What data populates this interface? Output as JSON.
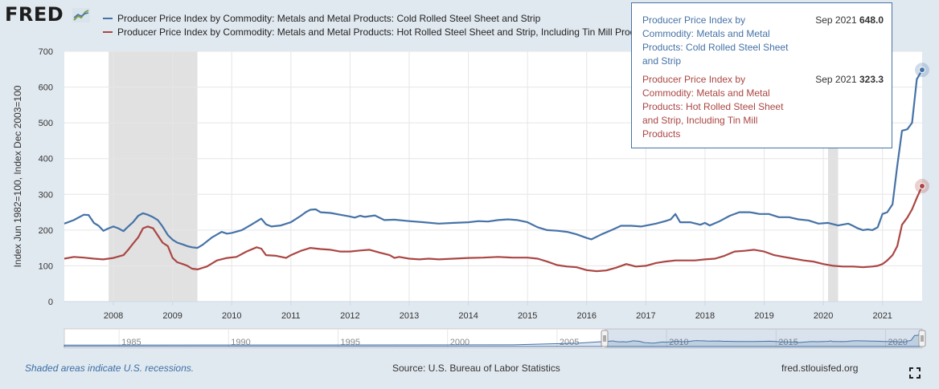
{
  "header": {
    "logo": "FRED"
  },
  "tooltip": [
    {
      "name": "Producer Price Index by Commodity: Metals and Metal Products: Cold Rolled Steel Sheet and Strip",
      "date": "Sep 2021",
      "value": "648.0",
      "color": "#4572a7"
    },
    {
      "name": "Producer Price Index by Commodity: Metals and Metal Products: Hot Rolled Steel Sheet and Strip, Including Tin Mill Products",
      "date": "Sep 2021",
      "value": "323.3",
      "color": "#aa4643"
    }
  ],
  "footer": {
    "note": "Shaded areas indicate U.S. recessions.",
    "source": "Source: U.S. Bureau of Labor Statistics",
    "site": "fred.stlouisfed.org"
  },
  "chart_data": {
    "type": "line",
    "title": "",
    "xlabel": "",
    "ylabel": "Index Jun 1982=100, Index Dec 2003=100",
    "ylim": [
      0,
      700
    ],
    "yticks": [
      0,
      100,
      200,
      300,
      400,
      500,
      600,
      700
    ],
    "xlim": [
      2007.17,
      2021.67
    ],
    "xticks": [
      "2008",
      "2009",
      "2010",
      "2011",
      "2012",
      "2013",
      "2014",
      "2015",
      "2016",
      "2017",
      "2018",
      "2019",
      "2020",
      "2021"
    ],
    "grid": true,
    "recessions": [
      [
        2007.92,
        2009.42
      ],
      [
        2020.08,
        2020.25
      ]
    ],
    "navigator": {
      "ticks": [
        "1985",
        "1990",
        "1995",
        "2000",
        "2005",
        "2010",
        "2015",
        "2020"
      ],
      "xlim": [
        1982.5,
        2021.67
      ],
      "selection": [
        2007.17,
        2021.67
      ]
    },
    "series": [
      {
        "name": "Producer Price Index by Commodity: Metals and Metal Products: Cold Rolled Steel Sheet and Strip",
        "color": "#4572a7",
        "x": [
          2007.17,
          2007.33,
          2007.5,
          2007.58,
          2007.67,
          2007.75,
          2007.83,
          2007.92,
          2008.0,
          2008.08,
          2008.17,
          2008.25,
          2008.33,
          2008.42,
          2008.5,
          2008.58,
          2008.67,
          2008.75,
          2008.83,
          2008.92,
          2009.0,
          2009.08,
          2009.17,
          2009.25,
          2009.33,
          2009.42,
          2009.5,
          2009.67,
          2009.83,
          2009.92,
          2010.0,
          2010.17,
          2010.33,
          2010.5,
          2010.58,
          2010.67,
          2010.83,
          2011.0,
          2011.17,
          2011.25,
          2011.33,
          2011.42,
          2011.5,
          2011.67,
          2011.83,
          2012.0,
          2012.08,
          2012.17,
          2012.25,
          2012.42,
          2012.58,
          2012.75,
          2013.0,
          2013.25,
          2013.5,
          2013.75,
          2014.0,
          2014.17,
          2014.33,
          2014.5,
          2014.67,
          2014.83,
          2015.0,
          2015.17,
          2015.33,
          2015.5,
          2015.67,
          2015.83,
          2016.0,
          2016.08,
          2016.25,
          2016.42,
          2016.58,
          2016.75,
          2016.92,
          2017.17,
          2017.33,
          2017.42,
          2017.5,
          2017.58,
          2017.75,
          2017.92,
          2018.0,
          2018.08,
          2018.25,
          2018.42,
          2018.58,
          2018.75,
          2018.83,
          2018.92,
          2019.08,
          2019.25,
          2019.42,
          2019.58,
          2019.75,
          2019.92,
          2020.08,
          2020.25,
          2020.42,
          2020.5,
          2020.58,
          2020.67,
          2020.75,
          2020.83,
          2020.92,
          2021.0,
          2021.08,
          2021.17,
          2021.25,
          2021.33,
          2021.42,
          2021.5,
          2021.58,
          2021.67
        ],
        "values": [
          218,
          228,
          243,
          242,
          220,
          212,
          198,
          205,
          210,
          205,
          197,
          210,
          222,
          240,
          247,
          243,
          236,
          228,
          210,
          186,
          173,
          165,
          160,
          155,
          152,
          150,
          158,
          180,
          195,
          190,
          192,
          200,
          215,
          232,
          216,
          210,
          213,
          222,
          240,
          250,
          257,
          258,
          250,
          248,
          243,
          238,
          235,
          240,
          237,
          241,
          228,
          229,
          225,
          222,
          218,
          220,
          222,
          225,
          224,
          228,
          230,
          228,
          222,
          208,
          200,
          198,
          195,
          188,
          178,
          174,
          188,
          200,
          212,
          212,
          210,
          218,
          225,
          230,
          245,
          222,
          222,
          215,
          220,
          213,
          225,
          240,
          250,
          250,
          248,
          245,
          245,
          236,
          236,
          230,
          227,
          218,
          220,
          213,
          218,
          212,
          205,
          200,
          202,
          200,
          208,
          245,
          250,
          272,
          380,
          478,
          482,
          500,
          622,
          648
        ]
      },
      {
        "name": "Producer Price Index by Commodity: Metals and Metal Products: Hot Rolled Steel Sheet and Strip, Including Tin Mill Products",
        "color": "#aa4643",
        "x": [
          2007.17,
          2007.33,
          2007.5,
          2007.67,
          2007.83,
          2008.0,
          2008.17,
          2008.25,
          2008.33,
          2008.42,
          2008.5,
          2008.58,
          2008.67,
          2008.75,
          2008.83,
          2008.92,
          2009.0,
          2009.08,
          2009.17,
          2009.25,
          2009.33,
          2009.42,
          2009.58,
          2009.75,
          2009.92,
          2010.08,
          2010.25,
          2010.42,
          2010.5,
          2010.58,
          2010.75,
          2010.92,
          2011.0,
          2011.17,
          2011.33,
          2011.5,
          2011.67,
          2011.83,
          2012.0,
          2012.17,
          2012.33,
          2012.5,
          2012.67,
          2012.75,
          2012.83,
          2013.0,
          2013.17,
          2013.33,
          2013.5,
          2013.75,
          2014.0,
          2014.25,
          2014.5,
          2014.75,
          2015.0,
          2015.17,
          2015.33,
          2015.5,
          2015.67,
          2015.83,
          2016.0,
          2016.17,
          2016.33,
          2016.5,
          2016.67,
          2016.83,
          2017.0,
          2017.17,
          2017.33,
          2017.5,
          2017.67,
          2017.83,
          2018.0,
          2018.17,
          2018.33,
          2018.5,
          2018.67,
          2018.83,
          2019.0,
          2019.17,
          2019.33,
          2019.5,
          2019.67,
          2019.83,
          2020.0,
          2020.17,
          2020.33,
          2020.5,
          2020.67,
          2020.83,
          2020.92,
          2021.0,
          2021.08,
          2021.17,
          2021.25,
          2021.33,
          2021.42,
          2021.5,
          2021.58,
          2021.67
        ],
        "values": [
          120,
          125,
          123,
          120,
          118,
          122,
          130,
          145,
          162,
          180,
          205,
          210,
          205,
          185,
          165,
          155,
          122,
          110,
          105,
          100,
          92,
          90,
          98,
          115,
          122,
          125,
          140,
          152,
          148,
          130,
          128,
          122,
          130,
          142,
          150,
          147,
          145,
          140,
          140,
          143,
          145,
          137,
          130,
          122,
          125,
          120,
          118,
          120,
          118,
          120,
          122,
          123,
          125,
          123,
          123,
          120,
          112,
          102,
          98,
          96,
          88,
          85,
          87,
          95,
          105,
          98,
          100,
          108,
          112,
          115,
          115,
          115,
          118,
          120,
          128,
          140,
          142,
          145,
          140,
          130,
          125,
          120,
          115,
          112,
          105,
          100,
          98,
          98,
          96,
          98,
          100,
          105,
          115,
          130,
          155,
          215,
          235,
          258,
          290,
          323
        ]
      }
    ]
  }
}
